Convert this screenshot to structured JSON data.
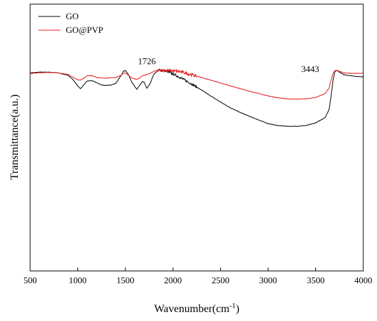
{
  "chart_data": {
    "type": "line",
    "title": "",
    "xlabel": "Wavenumber(cm",
    "xlabel_sup": "-1",
    "xlabel_close": ")",
    "ylabel": "Transmittance(a.u.)",
    "xlim": [
      500,
      4000
    ],
    "ylim": [
      0,
      1
    ],
    "xticks": [
      "500",
      "1000",
      "1500",
      "2000",
      "2500",
      "3000",
      "3500",
      "4000"
    ],
    "grid": false,
    "legend_position": "top-left",
    "series": [
      {
        "name": "GO",
        "color": "#000000",
        "x": [
          500,
          600,
          700,
          800,
          900,
          950,
          1000,
          1030,
          1060,
          1100,
          1150,
          1200,
          1250,
          1300,
          1350,
          1400,
          1450,
          1480,
          1500,
          1530,
          1570,
          1600,
          1620,
          1650,
          1680,
          1700,
          1726,
          1760,
          1800,
          1850,
          1900,
          1950,
          2000,
          2050,
          2100,
          2150,
          2200,
          2300,
          2400,
          2500,
          2600,
          2700,
          2800,
          2900,
          3000,
          3100,
          3200,
          3300,
          3400,
          3500,
          3600,
          3640,
          3660,
          3680,
          3700,
          3720,
          3750,
          3800,
          3900,
          4000
        ],
        "y": [
          0.742,
          0.745,
          0.745,
          0.742,
          0.733,
          0.717,
          0.693,
          0.683,
          0.696,
          0.712,
          0.713,
          0.705,
          0.697,
          0.695,
          0.697,
          0.703,
          0.73,
          0.748,
          0.752,
          0.737,
          0.706,
          0.69,
          0.681,
          0.695,
          0.71,
          0.706,
          0.684,
          0.702,
          0.738,
          0.752,
          0.752,
          0.746,
          0.738,
          0.73,
          0.72,
          0.71,
          0.7,
          0.678,
          0.655,
          0.633,
          0.612,
          0.595,
          0.58,
          0.566,
          0.552,
          0.545,
          0.542,
          0.542,
          0.545,
          0.555,
          0.575,
          0.605,
          0.65,
          0.71,
          0.747,
          0.752,
          0.745,
          0.735,
          0.73,
          0.727
        ]
      },
      {
        "name": "GO@PVP",
        "color": "#e8191b",
        "x": [
          500,
          600,
          700,
          800,
          900,
          950,
          1000,
          1030,
          1060,
          1100,
          1150,
          1200,
          1250,
          1300,
          1350,
          1400,
          1450,
          1480,
          1500,
          1530,
          1570,
          1600,
          1620,
          1650,
          1680,
          1700,
          1726,
          1760,
          1800,
          1850,
          1900,
          1950,
          2000,
          2050,
          2100,
          2150,
          2200,
          2300,
          2400,
          2500,
          2600,
          2700,
          2800,
          2900,
          3000,
          3100,
          3200,
          3300,
          3400,
          3500,
          3600,
          3640,
          3660,
          3680,
          3700,
          3720,
          3750,
          3800,
          3900,
          4000
        ],
        "y": [
          0.74,
          0.743,
          0.744,
          0.742,
          0.736,
          0.726,
          0.716,
          0.715,
          0.722,
          0.732,
          0.732,
          0.725,
          0.723,
          0.722,
          0.725,
          0.724,
          0.733,
          0.74,
          0.742,
          0.734,
          0.723,
          0.72,
          0.718,
          0.723,
          0.732,
          0.733,
          0.736,
          0.74,
          0.748,
          0.754,
          0.752,
          0.75,
          0.75,
          0.748,
          0.745,
          0.74,
          0.735,
          0.725,
          0.715,
          0.704,
          0.694,
          0.684,
          0.674,
          0.665,
          0.656,
          0.649,
          0.645,
          0.644,
          0.645,
          0.65,
          0.665,
          0.685,
          0.712,
          0.738,
          0.75,
          0.752,
          0.748,
          0.742,
          0.74,
          0.741
        ]
      }
    ],
    "annotations": [
      {
        "text": "1726",
        "x": 1726,
        "y": 0.775
      },
      {
        "text": "3443",
        "x": 3443,
        "y": 0.746
      }
    ]
  }
}
